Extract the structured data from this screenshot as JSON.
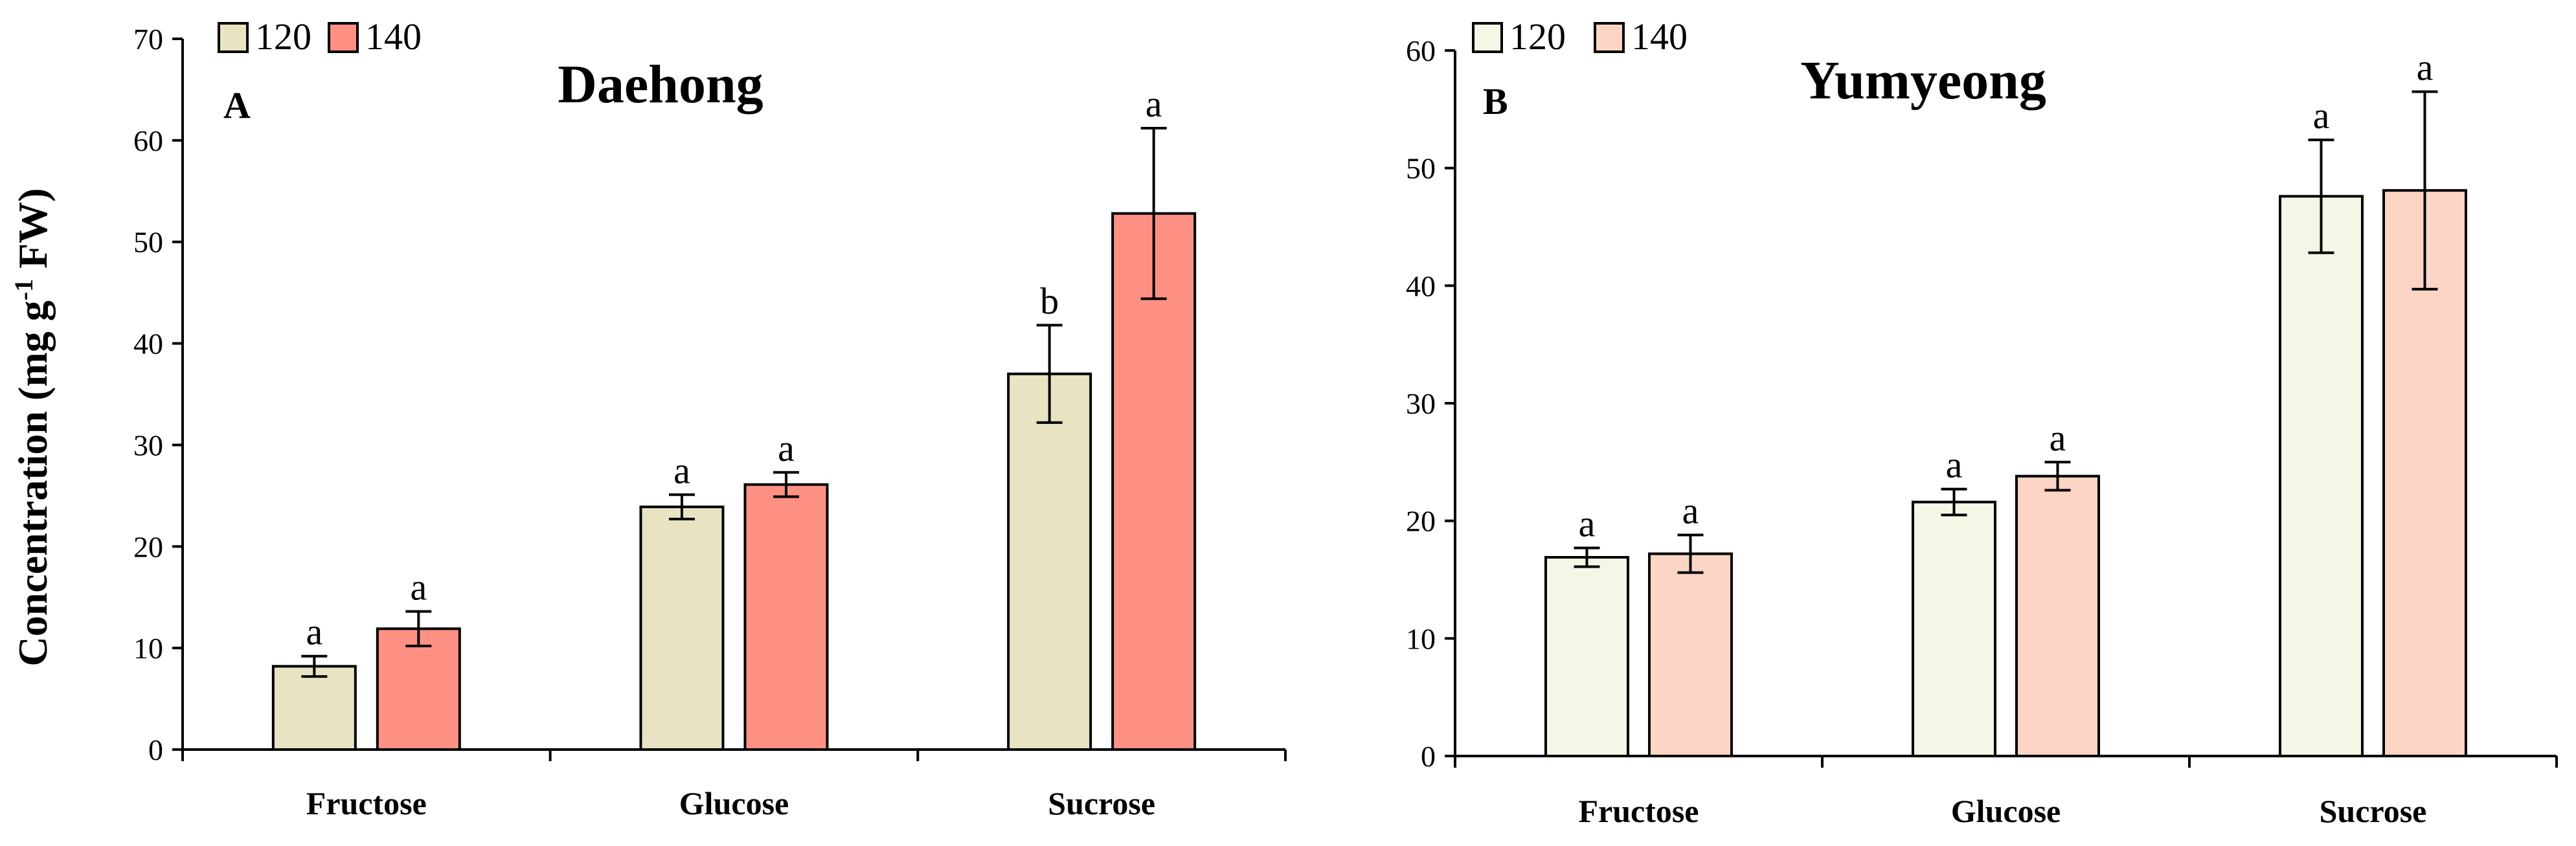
{
  "chart_data": [
    {
      "type": "bar",
      "panel": "A",
      "title": "Daehong",
      "ylabel": "Concentration (mg g-1 FW)",
      "ylabel_parts": {
        "pre": "Concentration (mg g",
        "sup": "-1",
        "post": " FW)"
      },
      "xlabel": "",
      "ylim": [
        0,
        70
      ],
      "yticks": [
        0,
        10,
        20,
        30,
        40,
        50,
        60,
        70
      ],
      "categories": [
        "Fructose",
        "Glucose",
        "Sucrose"
      ],
      "series": [
        {
          "name": "120",
          "color": "#e8e3c2",
          "values": [
            8.2,
            23.9,
            37.0
          ],
          "errors": [
            1.0,
            1.2,
            4.8
          ],
          "labels": [
            "a",
            "a",
            "b"
          ]
        },
        {
          "name": "140",
          "color": "#ff9184",
          "values": [
            11.9,
            26.1,
            52.8
          ],
          "errors": [
            1.7,
            1.2,
            8.4
          ],
          "labels": [
            "a",
            "a",
            "a"
          ]
        }
      ],
      "legend": "top-left"
    },
    {
      "type": "bar",
      "panel": "B",
      "title": "Yumyeong",
      "ylabel": "",
      "xlabel": "",
      "ylim": [
        0,
        60
      ],
      "yticks": [
        0,
        10,
        20,
        30,
        40,
        50,
        60
      ],
      "categories": [
        "Fructose",
        "Glucose",
        "Sucrose"
      ],
      "series": [
        {
          "name": "120",
          "color": "#f3f7e5",
          "values": [
            16.9,
            21.6,
            47.6
          ],
          "errors": [
            0.8,
            1.1,
            4.8
          ],
          "labels": [
            "a",
            "a",
            "a"
          ]
        },
        {
          "name": "140",
          "color": "#fcd5c4",
          "values": [
            17.2,
            23.8,
            48.1
          ],
          "errors": [
            1.6,
            1.2,
            8.4
          ],
          "labels": [
            "a",
            "a",
            "a"
          ]
        }
      ],
      "legend": "top-left"
    }
  ]
}
